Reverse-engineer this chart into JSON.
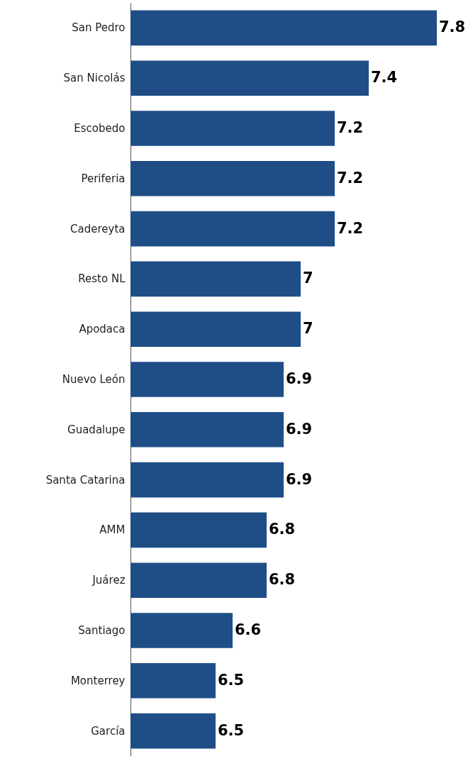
{
  "chart_data": {
    "type": "bar",
    "orientation": "horizontal",
    "categories": [
      "San Pedro",
      "San Nicolás",
      "Escobedo",
      "Periferia",
      "Cadereyta",
      "Resto NL",
      "Apodaca",
      "Nuevo León",
      "Guadalupe",
      "Santa Catarina",
      "AMM",
      "Juárez",
      "Santiago",
      "Monterrey",
      "García"
    ],
    "values": [
      7.8,
      7.4,
      7.2,
      7.2,
      7.2,
      7,
      7,
      6.9,
      6.9,
      6.9,
      6.8,
      6.8,
      6.6,
      6.5,
      6.5
    ],
    "color": "#1f4e87",
    "xlim": [
      6,
      8
    ],
    "data_labels": true,
    "tick_labels": "y",
    "grid": false
  }
}
